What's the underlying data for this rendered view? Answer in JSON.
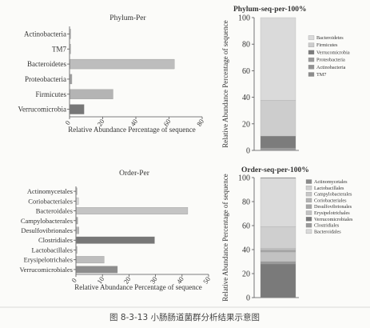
{
  "chart_data": [
    {
      "type": "bar",
      "orientation": "horizontal",
      "title": "Phylum-Per",
      "xlabel": "Relative Abundance Percentage of sequence",
      "ylabel": "",
      "xlim": [
        0,
        80
      ],
      "xticks": [
        0,
        20,
        40,
        60,
        80
      ],
      "categories": [
        "Actinobacteria",
        "TM7",
        "Bacteroidetes",
        "Proteobacteria",
        "Firmicutes",
        "Verrucomicrobia"
      ],
      "values": [
        0.5,
        0.2,
        63,
        1.2,
        26,
        8.5
      ],
      "colors": [
        "#c9c9c9",
        "#c9c9c9",
        "#bdbdbd",
        "#a3a3a3",
        "#b4b4b4",
        "#777777"
      ],
      "grid": false
    },
    {
      "type": "bar",
      "stacked": true,
      "title": "Phylum-seq-per-100%",
      "xlabel": "",
      "ylabel": "Relative Abundance Percentage of sequence",
      "ylim": [
        0,
        100
      ],
      "yticks": [
        0,
        20,
        40,
        60,
        80,
        100
      ],
      "legend_position": "right",
      "series": [
        {
          "name": "TM7",
          "values": [
            0.3
          ],
          "color": "#8c8c8c"
        },
        {
          "name": "Actinobacteria",
          "values": [
            0.4
          ],
          "color": "#939393"
        },
        {
          "name": "Proteobacteria",
          "values": [
            1.1
          ],
          "color": "#9a9a9a"
        },
        {
          "name": "Verrucomicrobia",
          "values": [
            9.0
          ],
          "color": "#7c7c7c"
        },
        {
          "name": "Firmicutes",
          "values": [
            27.0
          ],
          "color": "#cdcdcd"
        },
        {
          "name": "Bacteroidetes",
          "values": [
            62.2
          ],
          "color": "#dadada"
        }
      ],
      "legend_order": [
        "Bacteroidetes",
        "Firmicutes",
        "Verrucomicrobia",
        "Proteobacteria",
        "Actinobacteria",
        "TM7"
      ]
    },
    {
      "type": "bar",
      "orientation": "horizontal",
      "title": "Order-Per",
      "xlabel": "Relative Abundance Percentage of sequence",
      "ylabel": "",
      "xlim": [
        0,
        50
      ],
      "xticks": [
        0,
        10,
        20,
        30,
        40,
        50
      ],
      "categories": [
        "Actinomycetales",
        "Coriobacteriales",
        "Bacteroidales",
        "Campylobacterales",
        "Desulfovibrionales",
        "Clostridiales",
        "Lactobacillales",
        "Erysipelotrichales",
        "Verrucomicrobiales"
      ],
      "values": [
        0.3,
        0.8,
        42,
        0.5,
        1.0,
        29.5,
        0.3,
        10.5,
        15.5
      ],
      "colors": [
        "#c9c9c9",
        "#d4d4d4",
        "#c4c4c4",
        "#a8a8a8",
        "#b8b8b8",
        "#777777",
        "#c9c9c9",
        "#bdbdbd",
        "#8d8d8d"
      ],
      "grid": false
    },
    {
      "type": "bar",
      "stacked": true,
      "title": "Order-seq-per-100%",
      "xlabel": "",
      "ylabel": "Relative Abundance Percentage of sequence",
      "ylim": [
        0,
        100
      ],
      "yticks": [
        0,
        20,
        40,
        60,
        80,
        100
      ],
      "legend_position": "right",
      "series": [
        {
          "name": "Verrucomicrobiales",
          "values": [
            28.0
          ],
          "color": "#7a7a7a"
        },
        {
          "name": "Clostridiales",
          "values": [
            2.0
          ],
          "color": "#9a9a9a"
        },
        {
          "name": "Erysipelotrichales",
          "values": [
            8.0
          ],
          "color": "#c2c2c2"
        },
        {
          "name": "Desulfovibrionales",
          "values": [
            1.0
          ],
          "color": "#a6a6a6"
        },
        {
          "name": "Coriobacteriales",
          "values": [
            1.0
          ],
          "color": "#b3b3b3"
        },
        {
          "name": "Campylobacterales",
          "values": [
            1.0
          ],
          "color": "#c7c7c7"
        },
        {
          "name": "Lactobacillales",
          "values": [
            18.0
          ],
          "color": "#cfcfcf"
        },
        {
          "name": "Bacteroidales",
          "values": [
            40.5
          ],
          "color": "#dadada"
        },
        {
          "name": "Actinomycetales",
          "values": [
            0.5
          ],
          "color": "#8a8a8a"
        }
      ],
      "legend_order": [
        "Actinomycetales",
        "Lactobacillales",
        "Campylobacterales",
        "Coriobacteriales",
        "Desulfovibrionales",
        "Erysipelotrichales",
        "Verrucomicrobiales",
        "Clostridiales",
        "Bacteroidales"
      ]
    }
  ],
  "caption": "图 8-3-13    小肠肠道菌群分析结果示意图"
}
